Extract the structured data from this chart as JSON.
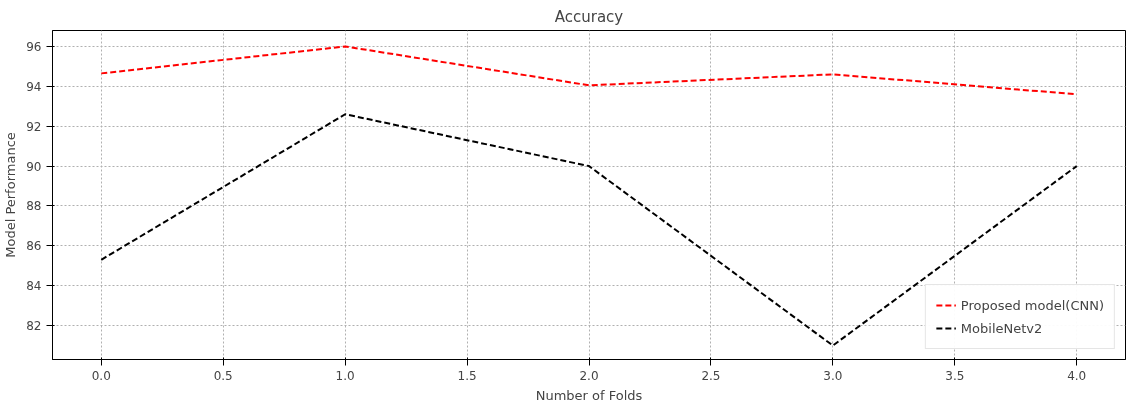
{
  "chart_data": {
    "type": "line",
    "title": "Accuracy",
    "xlabel": "Number of Folds",
    "ylabel": "Model Performance",
    "x": [
      0,
      1,
      2,
      3,
      4
    ],
    "series": [
      {
        "name": "Proposed model(CNN)",
        "color": "#ff0000",
        "values": [
          94.65,
          96.0,
          94.05,
          94.6,
          93.6
        ]
      },
      {
        "name": "MobileNetv2",
        "color": "#000000",
        "values": [
          85.3,
          92.6,
          90.0,
          81.0,
          90.0
        ]
      }
    ],
    "xlim": [
      -0.2,
      4.2
    ],
    "ylim": [
      80.3,
      96.8
    ],
    "xticks": [
      {
        "value": 0,
        "label": "0.0"
      },
      {
        "value": 0.5,
        "label": "0.5"
      },
      {
        "value": 1,
        "label": "1.0"
      },
      {
        "value": 1.5,
        "label": "1.5"
      },
      {
        "value": 2,
        "label": "2.0"
      },
      {
        "value": 2.5,
        "label": "2.5"
      },
      {
        "value": 3,
        "label": "3.0"
      },
      {
        "value": 3.5,
        "label": "3.5"
      },
      {
        "value": 4,
        "label": "4.0"
      }
    ],
    "yticks": [
      82,
      84,
      86,
      88,
      90,
      92,
      94,
      96
    ],
    "grid": true,
    "legend": "bottom right",
    "line_style": "dashed",
    "marker": "none"
  }
}
